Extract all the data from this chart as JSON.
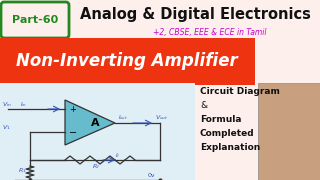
{
  "bg_color": "#fdf0ec",
  "part_box_border": "#228822",
  "part_text": "Part-60",
  "part_text_color": "#228822",
  "title_text": "Analog & Digital Electronics",
  "title_color": "#111111",
  "subtitle_text": "+2, CBSE, EEE & ECE in Tamil",
  "subtitle_color": "#cc00cc",
  "banner_color": "#ee3311",
  "banner_text": "Non-Inverting Amplifier",
  "banner_text_color": "#ffffff",
  "right_text_lines": [
    "Circuit Diagram",
    "&",
    "Formula",
    "Completed",
    "Explanation"
  ],
  "right_text_color": "#111111",
  "amp_label": "A",
  "amp_fill": "#66bbcc",
  "circuit_line_color": "#333333",
  "label_color": "#3355bb",
  "arrow_color": "#3355bb",
  "gnd_label": "0v",
  "circuit_bg": "#e0eef5",
  "photo_bg": "#c8a080"
}
